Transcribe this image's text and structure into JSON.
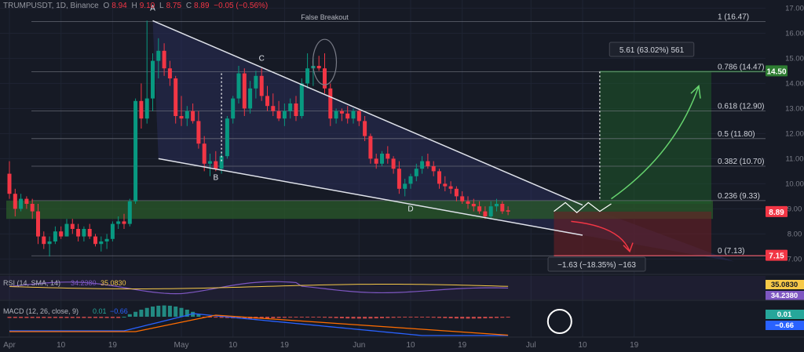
{
  "header": {
    "symbol": "TRUMPUSDT, 1D, Binance",
    "o_label": "O",
    "o_val": "8.94",
    "h_label": "H",
    "h_val": "9.10",
    "l_label": "L",
    "l_val": "8.75",
    "c_label": "C",
    "c_val": "8.89",
    "change": "−0.05 (−0.56%)"
  },
  "colors": {
    "background": "#161a25",
    "up": "#089981",
    "down": "#f23645",
    "wedge_fill": "#2a2e58",
    "support_zone": "#2a5a2a",
    "target_zone": "#1f5a2a",
    "loss_zone": "#6b1f26",
    "rsi": "#7e57c2",
    "rsi_sma": "#f7c948",
    "macd": "#2962ff",
    "signal": "#ff6d00"
  },
  "chart_data": [
    {
      "type": "candlestick",
      "title": "TRUMPUSDT, 1D, Binance",
      "y_axis_ticks": [
        7.0,
        8.0,
        9.0,
        10.0,
        11.0,
        12.0,
        13.0,
        14.0,
        15.0,
        16.0,
        17.0
      ],
      "ylim": [
        6.7,
        17.2
      ],
      "x_axis_ticks": [
        {
          "day": 0,
          "label": "Apr"
        },
        {
          "day": 9,
          "label": "10"
        },
        {
          "day": 18,
          "label": "19"
        },
        {
          "day": 30,
          "label": "May"
        },
        {
          "day": 39,
          "label": "10"
        },
        {
          "day": 48,
          "label": "19"
        },
        {
          "day": 61,
          "label": "Jun"
        },
        {
          "day": 70,
          "label": "10"
        },
        {
          "day": 79,
          "label": "19"
        },
        {
          "day": 91,
          "label": "Jul"
        },
        {
          "day": 100,
          "label": "10"
        },
        {
          "day": 109,
          "label": "19"
        }
      ],
      "candles": [
        [
          10.4,
          10.9,
          9.4,
          9.6
        ],
        [
          9.6,
          9.8,
          8.7,
          9.0
        ],
        [
          9.0,
          9.6,
          8.9,
          9.4
        ],
        [
          9.4,
          9.5,
          9.0,
          9.2
        ],
        [
          9.2,
          9.4,
          8.6,
          8.9
        ],
        [
          8.9,
          9.2,
          7.6,
          7.9
        ],
        [
          7.9,
          8.1,
          7.4,
          7.6
        ],
        [
          7.6,
          7.9,
          7.1,
          7.7
        ],
        [
          7.7,
          8.3,
          7.6,
          8.1
        ],
        [
          8.1,
          8.3,
          7.8,
          7.9
        ],
        [
          7.9,
          8.6,
          7.9,
          8.4
        ],
        [
          8.4,
          8.6,
          8.0,
          8.2
        ],
        [
          8.2,
          8.4,
          7.7,
          7.9
        ],
        [
          7.9,
          8.3,
          7.7,
          8.2
        ],
        [
          8.2,
          8.4,
          7.8,
          7.9
        ],
        [
          7.9,
          8.0,
          7.5,
          7.6
        ],
        [
          7.6,
          7.9,
          7.3,
          7.7
        ],
        [
          7.7,
          8.0,
          7.4,
          7.8
        ],
        [
          7.8,
          8.5,
          7.7,
          8.4
        ],
        [
          8.4,
          8.7,
          8.2,
          8.5
        ],
        [
          8.5,
          8.8,
          8.2,
          8.4
        ],
        [
          8.4,
          9.4,
          8.3,
          9.3
        ],
        [
          9.3,
          13.4,
          9.2,
          13.3
        ],
        [
          13.3,
          14.0,
          12.2,
          12.6
        ],
        [
          12.6,
          16.5,
          12.4,
          13.4
        ],
        [
          13.4,
          15.2,
          12.9,
          14.9
        ],
        [
          14.9,
          15.8,
          14.2,
          15.3
        ],
        [
          15.3,
          15.6,
          14.3,
          14.6
        ],
        [
          14.6,
          14.9,
          13.9,
          14.2
        ],
        [
          14.2,
          14.3,
          12.4,
          12.7
        ],
        [
          12.7,
          13.5,
          12.3,
          12.6
        ],
        [
          12.6,
          13.1,
          12.3,
          12.9
        ],
        [
          12.9,
          13.2,
          12.4,
          12.5
        ],
        [
          12.5,
          12.9,
          11.4,
          11.6
        ],
        [
          11.6,
          11.9,
          10.5,
          10.8
        ],
        [
          10.8,
          11.2,
          10.3,
          10.9
        ],
        [
          10.9,
          11.3,
          10.5,
          10.6
        ],
        [
          10.6,
          11.3,
          10.4,
          11.1
        ],
        [
          11.1,
          12.7,
          11.0,
          12.6
        ],
        [
          12.6,
          13.5,
          12.4,
          13.4
        ],
        [
          13.4,
          14.7,
          13.2,
          14.4
        ],
        [
          14.4,
          14.6,
          12.7,
          13.0
        ],
        [
          13.0,
          14.1,
          12.8,
          13.8
        ],
        [
          13.8,
          14.5,
          13.4,
          14.3
        ],
        [
          14.3,
          14.6,
          13.3,
          13.5
        ],
        [
          13.5,
          13.9,
          12.9,
          13.1
        ],
        [
          13.1,
          13.6,
          12.7,
          12.9
        ],
        [
          12.9,
          13.3,
          12.5,
          12.6
        ],
        [
          12.6,
          13.2,
          12.3,
          12.9
        ],
        [
          12.9,
          13.4,
          12.6,
          13.2
        ],
        [
          13.2,
          13.5,
          12.5,
          12.7
        ],
        [
          12.7,
          14.2,
          12.6,
          14.0
        ],
        [
          14.0,
          15.2,
          13.8,
          14.6
        ],
        [
          14.6,
          15.0,
          13.9,
          14.7
        ],
        [
          14.7,
          15.1,
          14.5,
          14.6
        ],
        [
          14.6,
          15.2,
          13.6,
          13.8
        ],
        [
          13.8,
          14.0,
          12.3,
          12.6
        ],
        [
          12.6,
          13.0,
          12.4,
          12.9
        ],
        [
          12.9,
          13.0,
          12.5,
          12.8
        ],
        [
          12.8,
          13.1,
          12.4,
          12.6
        ],
        [
          12.6,
          13.0,
          12.4,
          12.9
        ],
        [
          12.9,
          13.0,
          12.3,
          12.5
        ],
        [
          12.5,
          12.7,
          11.7,
          11.9
        ],
        [
          11.9,
          12.0,
          10.8,
          11.0
        ],
        [
          11.0,
          11.2,
          10.6,
          10.8
        ],
        [
          10.8,
          11.3,
          10.7,
          11.2
        ],
        [
          11.2,
          11.5,
          10.8,
          11.0
        ],
        [
          11.0,
          11.1,
          10.4,
          10.6
        ],
        [
          10.6,
          10.9,
          9.6,
          9.8
        ],
        [
          9.8,
          10.2,
          9.5,
          10.0
        ],
        [
          10.0,
          10.4,
          9.8,
          10.3
        ],
        [
          10.3,
          10.8,
          10.1,
          10.6
        ],
        [
          10.6,
          11.1,
          10.4,
          10.9
        ],
        [
          10.9,
          11.2,
          10.6,
          10.7
        ],
        [
          10.7,
          10.9,
          10.3,
          10.5
        ],
        [
          10.5,
          10.6,
          9.8,
          10.0
        ],
        [
          10.0,
          10.3,
          9.7,
          9.9
        ],
        [
          9.9,
          10.1,
          9.6,
          9.8
        ],
        [
          9.8,
          9.9,
          9.3,
          9.5
        ],
        [
          9.5,
          9.7,
          9.2,
          9.3
        ],
        [
          9.3,
          9.5,
          9.0,
          9.2
        ],
        [
          9.2,
          9.4,
          8.9,
          9.1
        ],
        [
          9.1,
          9.3,
          8.8,
          8.9
        ],
        [
          8.9,
          9.1,
          8.6,
          8.7
        ],
        [
          8.7,
          9.3,
          8.6,
          9.1
        ],
        [
          9.1,
          9.4,
          8.9,
          9.2
        ],
        [
          9.2,
          9.3,
          8.8,
          8.9
        ],
        [
          8.94,
          9.1,
          8.75,
          8.89
        ]
      ],
      "fibonacci_levels": [
        {
          "ratio": "1",
          "price": 16.47,
          "label": "1 (16.47)"
        },
        {
          "ratio": "0.786",
          "price": 14.47,
          "label": "0.786 (14.47)"
        },
        {
          "ratio": "0.618",
          "price": 12.9,
          "label": "0.618 (12.90)"
        },
        {
          "ratio": "0.5",
          "price": 11.8,
          "label": "0.5 (11.80)"
        },
        {
          "ratio": "0.382",
          "price": 10.7,
          "label": "0.382 (10.70)"
        },
        {
          "ratio": "0.236",
          "price": 9.33,
          "label": "0.236 (9.33)"
        },
        {
          "ratio": "0",
          "price": 7.13,
          "label": "0 (7.13)"
        }
      ],
      "price_badges": [
        {
          "price": 14.5,
          "label": "14.50",
          "color": "#2e7d32"
        },
        {
          "price": 8.89,
          "label": "8.89",
          "color": "#f23645"
        },
        {
          "price": 7.15,
          "label": "7.15",
          "color": "#f23645"
        }
      ],
      "annotations": {
        "false_breakout": "False Breakout",
        "points": [
          {
            "label": "A",
            "day": 25,
            "price": 16.9
          },
          {
            "label": "B",
            "day": 36,
            "price": 10.15
          },
          {
            "label": "C",
            "day": 44,
            "price": 14.9
          },
          {
            "label": "D",
            "day": 70,
            "price": 8.9
          }
        ],
        "upper_trendline": [
          [
            25,
            16.5
          ],
          [
            100,
            9.15
          ]
        ],
        "lower_trendline": [
          [
            26,
            11.0
          ],
          [
            100,
            7.95
          ]
        ],
        "target_box_label": "5.61 (63.02%) 561",
        "loss_box_label": "−1.63 (−18.35%) −163"
      }
    },
    {
      "type": "line",
      "title": "RSI (14, SMA, 14)",
      "rsi_value": "34.2380",
      "sma_value": "35.0830",
      "badges": [
        "35.0830",
        "34.2380"
      ]
    },
    {
      "type": "histogram",
      "title": "MACD (12, 26, close, 9)",
      "values_text": [
        "0.01",
        "−0.66"
      ],
      "badges": [
        "0.01",
        "−0.66"
      ]
    }
  ]
}
